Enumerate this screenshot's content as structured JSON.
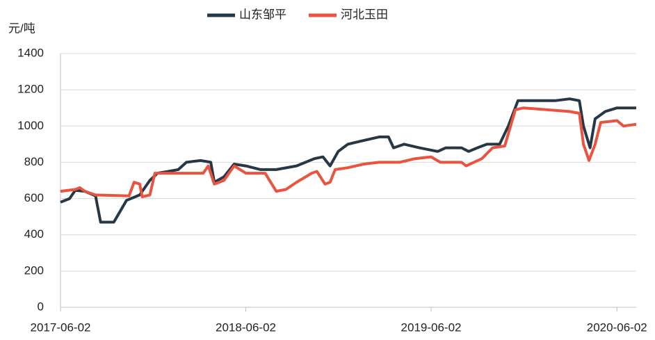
{
  "chart_data": {
    "type": "line",
    "ylabel": "元/吨",
    "x": [
      "2017-06-02",
      "2017-06-20",
      "2017-07-01",
      "2017-07-20",
      "2017-08-10",
      "2017-08-20",
      "2017-09-15",
      "2017-10-10",
      "2017-11-05",
      "2017-11-25",
      "2017-12-10",
      "2018-01-01",
      "2018-01-20",
      "2018-02-05",
      "2018-03-05",
      "2018-03-25",
      "2018-04-01",
      "2018-04-20",
      "2018-05-10",
      "2018-06-02",
      "2018-07-01",
      "2018-08-01",
      "2018-09-10",
      "2018-10-15",
      "2018-11-01",
      "2018-11-15",
      "2018-12-01",
      "2018-12-20",
      "2019-01-20",
      "2019-02-20",
      "2019-03-10",
      "2019-03-20",
      "2019-04-10",
      "2019-05-10",
      "2019-06-15",
      "2019-07-01",
      "2019-08-01",
      "2019-08-15",
      "2019-09-01",
      "2019-09-20",
      "2019-10-15",
      "2019-11-01",
      "2019-11-20",
      "2019-12-20",
      "2020-02-01",
      "2020-03-01",
      "2020-03-20",
      "2020-03-28",
      "2020-04-10",
      "2020-04-20",
      "2020-05-10",
      "2020-06-02",
      "2020-07-10"
    ],
    "series": [
      {
        "name": "山东邹平",
        "color": "#263746",
        "values": [
          580,
          600,
          645,
          640,
          615,
          470,
          470,
          590,
          620,
          700,
          740,
          750,
          760,
          800,
          810,
          800,
          690,
          720,
          790,
          780,
          760,
          760,
          780,
          820,
          830,
          780,
          860,
          900,
          920,
          940,
          940,
          880,
          900,
          880,
          860,
          880,
          880,
          860,
          880,
          900,
          900,
          1000,
          1140,
          1140,
          1140,
          1150,
          1140,
          1000,
          880,
          1040,
          1080,
          1100,
          1100
        ]
      },
      {
        "name": "河北玉田",
        "color": "#e9533f",
        "x": [
          "2017-06-02",
          "2017-07-01",
          "2017-07-10",
          "2017-07-20",
          "2017-08-10",
          "2017-10-15",
          "2017-10-25",
          "2017-11-05",
          "2017-11-10",
          "2017-11-25",
          "2017-12-05",
          "2018-01-01",
          "2018-03-10",
          "2018-03-20",
          "2018-04-01",
          "2018-04-20",
          "2018-05-10",
          "2018-06-02",
          "2018-07-10",
          "2018-08-01",
          "2018-08-20",
          "2018-09-10",
          "2018-10-10",
          "2018-10-20",
          "2018-11-05",
          "2018-11-15",
          "2018-11-25",
          "2018-12-20",
          "2019-01-20",
          "2019-02-20",
          "2019-04-01",
          "2019-05-01",
          "2019-06-02",
          "2019-06-20",
          "2019-08-01",
          "2019-08-10",
          "2019-09-10",
          "2019-10-01",
          "2019-10-25",
          "2019-11-15",
          "2019-12-01",
          "2020-03-01",
          "2020-03-20",
          "2020-03-28",
          "2020-04-08",
          "2020-04-20",
          "2020-05-01",
          "2020-06-02",
          "2020-06-15",
          "2020-07-10"
        ],
        "values": [
          640,
          650,
          660,
          640,
          620,
          615,
          690,
          680,
          610,
          620,
          740,
          740,
          740,
          780,
          680,
          700,
          780,
          740,
          740,
          640,
          650,
          690,
          740,
          750,
          680,
          690,
          760,
          770,
          790,
          800,
          800,
          820,
          830,
          800,
          800,
          780,
          820,
          880,
          890,
          1090,
          1100,
          1080,
          1070,
          900,
          810,
          900,
          1020,
          1030,
          1000,
          1010
        ]
      }
    ],
    "xlim": [
      "2017-06-02",
      "2020-07-10"
    ],
    "xticks": [
      "2017-06-02",
      "2018-06-02",
      "2019-06-02",
      "2020-06-02"
    ],
    "ylim": [
      0,
      1400
    ],
    "yticks": [
      0,
      200,
      400,
      600,
      800,
      1000,
      1200,
      1400
    ],
    "grid": true,
    "legend": "top"
  }
}
